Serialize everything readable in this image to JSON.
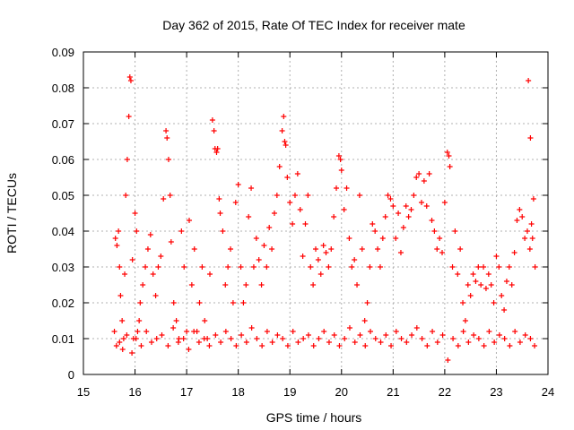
{
  "colors": {
    "series": "#ff0000",
    "grid": "#b0b0b0",
    "axis": "#000000",
    "background": "#ffffff"
  },
  "chart_data": {
    "type": "scatter",
    "title": "Day 362 of 2015, Rate Of TEC Index for receiver mate",
    "xlabel": "GPS time / hours",
    "ylabel": "ROTI / TECUs",
    "xlim": [
      15,
      24
    ],
    "ylim": [
      0,
      0.09
    ],
    "xticks": [
      "15",
      "16",
      "17",
      "18",
      "19",
      "20",
      "21",
      "22",
      "23",
      "24"
    ],
    "yticks": [
      "0",
      "0.01",
      "0.02",
      "0.03",
      "0.04",
      "0.05",
      "0.06",
      "0.07",
      "0.08",
      "0.09"
    ],
    "xtick_values": [
      15,
      16,
      17,
      18,
      19,
      20,
      21,
      22,
      23,
      24
    ],
    "ytick_values": [
      0,
      0.01,
      0.02,
      0.03,
      0.04,
      0.05,
      0.06,
      0.07,
      0.08,
      0.09
    ],
    "grid": true,
    "marker": "plus",
    "series": [
      {
        "name": "ROTI",
        "x": [
          15.6,
          15.62,
          15.65,
          15.68,
          15.7,
          15.72,
          15.75,
          15.78,
          15.8,
          15.82,
          15.85,
          15.88,
          15.9,
          15.92,
          15.95,
          15.97,
          16.0,
          16.03,
          16.05,
          16.08,
          16.1,
          16.15,
          16.2,
          16.25,
          16.3,
          16.35,
          16.4,
          16.45,
          16.5,
          16.55,
          16.6,
          16.62,
          16.65,
          16.68,
          16.7,
          16.75,
          16.8,
          16.85,
          16.9,
          16.95,
          17.0,
          17.05,
          17.1,
          17.15,
          17.2,
          17.25,
          17.3,
          17.35,
          17.4,
          17.45,
          17.5,
          17.53,
          17.55,
          17.58,
          17.6,
          17.63,
          17.65,
          17.7,
          17.75,
          17.8,
          17.85,
          17.9,
          17.95,
          18.0,
          18.05,
          18.1,
          18.15,
          18.2,
          18.25,
          18.3,
          18.35,
          18.4,
          18.45,
          18.5,
          18.55,
          18.6,
          18.65,
          18.7,
          18.75,
          18.8,
          18.85,
          18.88,
          18.9,
          18.92,
          18.95,
          19.0,
          19.05,
          19.1,
          19.15,
          19.2,
          19.25,
          19.3,
          19.35,
          19.4,
          19.45,
          19.5,
          19.55,
          19.6,
          19.65,
          19.7,
          19.75,
          19.8,
          19.85,
          19.9,
          19.95,
          19.98,
          20.0,
          20.05,
          20.1,
          20.15,
          20.2,
          20.25,
          20.3,
          20.35,
          20.4,
          20.45,
          20.5,
          20.55,
          20.6,
          20.65,
          20.7,
          20.75,
          20.8,
          20.85,
          20.9,
          20.95,
          21.0,
          21.05,
          21.1,
          21.15,
          21.2,
          21.25,
          21.3,
          21.35,
          21.4,
          21.45,
          21.5,
          21.55,
          21.6,
          21.65,
          21.7,
          21.75,
          21.8,
          21.85,
          21.9,
          21.95,
          22.0,
          22.05,
          22.08,
          22.1,
          22.15,
          22.2,
          22.25,
          22.3,
          22.35,
          22.4,
          22.45,
          22.5,
          22.55,
          22.6,
          22.65,
          22.7,
          22.75,
          22.8,
          22.85,
          22.9,
          22.95,
          23.0,
          23.05,
          23.1,
          23.15,
          23.2,
          23.25,
          23.3,
          23.35,
          23.4,
          23.45,
          23.5,
          23.55,
          23.6,
          23.65,
          23.68,
          23.7,
          23.72,
          23.75,
          23.62,
          23.66,
          15.64,
          15.7,
          15.76,
          15.84,
          15.94,
          16.02,
          16.12,
          16.22,
          16.32,
          16.42,
          16.52,
          16.64,
          16.74,
          16.84,
          16.94,
          17.04,
          17.14,
          17.24,
          17.34,
          17.44,
          17.56,
          17.66,
          17.76,
          17.86,
          17.96,
          18.06,
          18.16,
          18.26,
          18.36,
          18.46,
          18.56,
          18.66,
          18.76,
          18.86,
          18.96,
          19.06,
          19.16,
          19.26,
          19.36,
          19.46,
          19.56,
          19.66,
          19.76,
          19.86,
          19.96,
          20.06,
          20.16,
          20.26,
          20.36,
          20.46,
          20.56,
          20.66,
          20.76,
          20.86,
          20.96,
          21.06,
          21.16,
          21.26,
          21.36,
          21.46,
          21.56,
          21.66,
          21.76,
          21.86,
          21.96,
          22.06,
          22.16,
          22.26,
          22.36,
          22.46,
          22.56,
          22.66,
          22.76,
          22.86,
          22.96,
          23.06,
          23.16,
          23.26,
          23.36,
          23.46,
          23.56,
          23.66,
          23.74
        ],
        "y": [
          0.012,
          0.038,
          0.036,
          0.04,
          0.03,
          0.022,
          0.015,
          0.01,
          0.028,
          0.05,
          0.06,
          0.072,
          0.083,
          0.082,
          0.032,
          0.01,
          0.045,
          0.04,
          0.012,
          0.015,
          0.02,
          0.025,
          0.03,
          0.035,
          0.039,
          0.028,
          0.022,
          0.03,
          0.033,
          0.049,
          0.068,
          0.066,
          0.06,
          0.05,
          0.037,
          0.02,
          0.015,
          0.01,
          0.04,
          0.03,
          0.012,
          0.043,
          0.025,
          0.035,
          0.012,
          0.02,
          0.03,
          0.015,
          0.01,
          0.028,
          0.071,
          0.068,
          0.063,
          0.062,
          0.063,
          0.049,
          0.045,
          0.04,
          0.025,
          0.03,
          0.035,
          0.02,
          0.048,
          0.053,
          0.03,
          0.02,
          0.025,
          0.044,
          0.052,
          0.03,
          0.038,
          0.032,
          0.025,
          0.036,
          0.03,
          0.041,
          0.035,
          0.045,
          0.05,
          0.058,
          0.068,
          0.072,
          0.065,
          0.064,
          0.055,
          0.048,
          0.042,
          0.05,
          0.056,
          0.046,
          0.033,
          0.042,
          0.05,
          0.03,
          0.025,
          0.035,
          0.032,
          0.028,
          0.036,
          0.034,
          0.03,
          0.035,
          0.044,
          0.052,
          0.061,
          0.06,
          0.057,
          0.046,
          0.052,
          0.038,
          0.03,
          0.032,
          0.025,
          0.05,
          0.035,
          0.015,
          0.02,
          0.03,
          0.042,
          0.04,
          0.035,
          0.03,
          0.038,
          0.044,
          0.05,
          0.049,
          0.047,
          0.038,
          0.045,
          0.034,
          0.041,
          0.047,
          0.044,
          0.046,
          0.05,
          0.055,
          0.056,
          0.048,
          0.054,
          0.047,
          0.056,
          0.043,
          0.04,
          0.035,
          0.038,
          0.034,
          0.048,
          0.062,
          0.061,
          0.058,
          0.03,
          0.04,
          0.028,
          0.035,
          0.02,
          0.015,
          0.025,
          0.022,
          0.028,
          0.026,
          0.03,
          0.025,
          0.03,
          0.024,
          0.028,
          0.025,
          0.02,
          0.033,
          0.03,
          0.022,
          0.018,
          0.026,
          0.03,
          0.025,
          0.034,
          0.043,
          0.046,
          0.044,
          0.038,
          0.04,
          0.035,
          0.042,
          0.038,
          0.049,
          0.03,
          0.082,
          0.066,
          0.008,
          0.009,
          0.007,
          0.011,
          0.006,
          0.01,
          0.008,
          0.012,
          0.009,
          0.01,
          0.011,
          0.008,
          0.013,
          0.009,
          0.01,
          0.007,
          0.012,
          0.009,
          0.01,
          0.008,
          0.011,
          0.009,
          0.012,
          0.01,
          0.008,
          0.011,
          0.009,
          0.013,
          0.01,
          0.008,
          0.012,
          0.009,
          0.011,
          0.01,
          0.008,
          0.012,
          0.009,
          0.01,
          0.011,
          0.008,
          0.01,
          0.012,
          0.009,
          0.011,
          0.008,
          0.01,
          0.013,
          0.009,
          0.011,
          0.008,
          0.012,
          0.01,
          0.009,
          0.011,
          0.008,
          0.012,
          0.01,
          0.009,
          0.011,
          0.013,
          0.01,
          0.008,
          0.012,
          0.009,
          0.011,
          0.004,
          0.01,
          0.008,
          0.012,
          0.009,
          0.011,
          0.01,
          0.008,
          0.012,
          0.009,
          0.011,
          0.01,
          0.008,
          0.012,
          0.009,
          0.011,
          0.01,
          0.008
        ]
      }
    ]
  }
}
